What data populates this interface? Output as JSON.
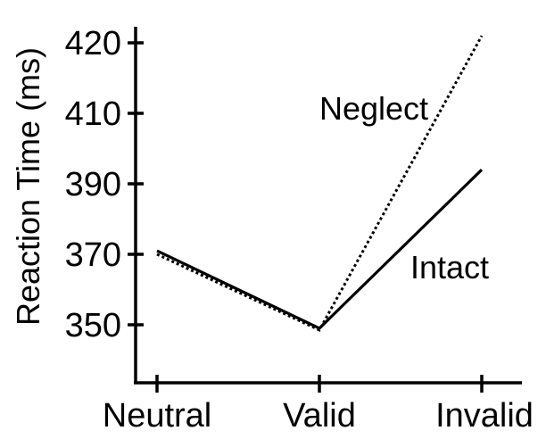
{
  "chart_data": {
    "type": "line",
    "categories": [
      "Neutral",
      "Valid",
      "Invalid"
    ],
    "ylabel": "Reaction Time (ms)",
    "yticks": [
      350,
      370,
      390,
      410,
      420
    ],
    "ylim": [
      330,
      423
    ],
    "grid": false,
    "legend": "inline",
    "series": [
      {
        "name": "Intact",
        "values": [
          371,
          349,
          394
        ],
        "style": "solid",
        "color": "#000000"
      },
      {
        "name": "Neglect",
        "values": [
          370,
          348.5,
          421
        ],
        "style": "dotted",
        "color": "#000000"
      }
    ]
  }
}
